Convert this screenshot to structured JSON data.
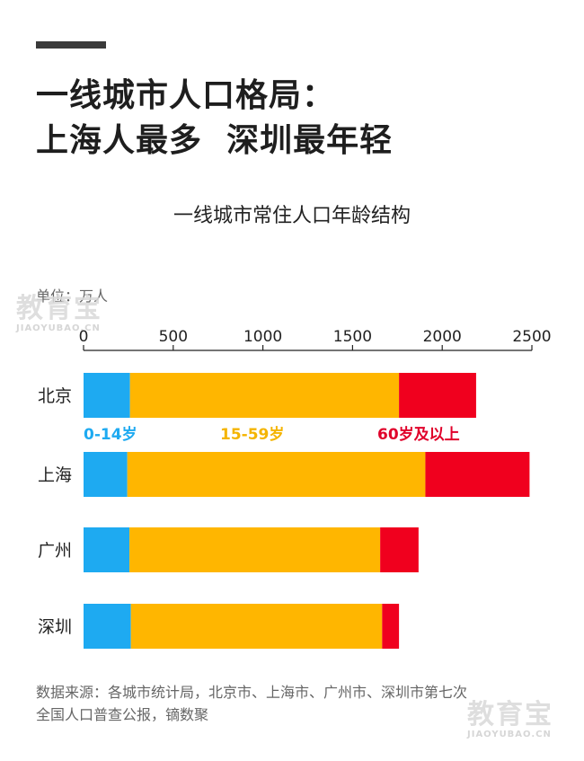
{
  "header": {
    "headline_line1": "一线城市人口格局：",
    "headline_line2": "上海人最多  深圳最年轻"
  },
  "unit_label": "单位：万人",
  "source_line1": "数据来源：各城市统计局，北京市、上海市、广州市、深圳市第七次",
  "source_line2": "全国人口普查公报，镝数聚",
  "watermark": {
    "main": "教育宝",
    "sub": "JIAOYUBAO.CN"
  },
  "colors": {
    "age_0_14": "#1EAAF1",
    "age_15_59": "#FFB600",
    "age_60_plus": "#F0001E",
    "label_0_14": "#1EAAF1",
    "label_15_59": "#F4B400",
    "label_60_plus": "#E0002A"
  },
  "chart_data": {
    "type": "bar",
    "orientation": "horizontal",
    "stacked": true,
    "title": "一线城市常住人口年龄结构",
    "categories": [
      "北京",
      "上海",
      "广州",
      "深圳"
    ],
    "series": [
      {
        "name": "0-14岁",
        "values": [
          259,
          244,
          256,
          264
        ]
      },
      {
        "name": "15-59岁",
        "values": [
          1500,
          1662,
          1398,
          1401
        ]
      },
      {
        "name": "60岁及以上",
        "values": [
          430,
          581,
          214,
          94
        ]
      }
    ],
    "xlim": [
      0,
      2500
    ],
    "xticks": [
      0,
      500,
      1000,
      1500,
      2000,
      2500
    ],
    "xtick_labels": [
      "0",
      "500",
      "1000",
      "1500",
      "2000",
      "2500"
    ],
    "axis_position": "top",
    "grid": false,
    "legend": "inline labels under the first bar"
  }
}
